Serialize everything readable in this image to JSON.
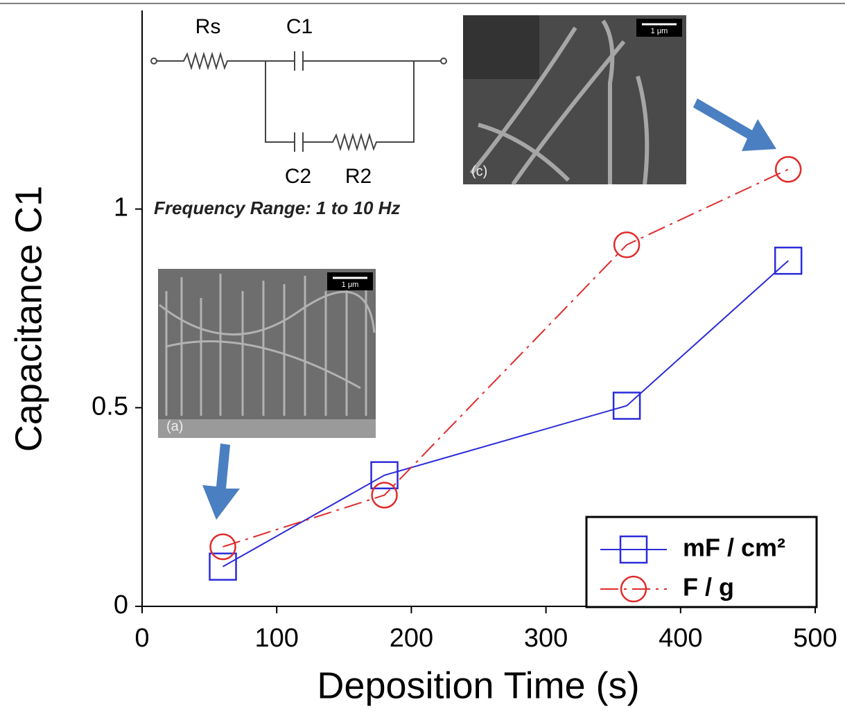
{
  "chart_data": {
    "type": "line",
    "x_label": "Deposition Time (s)",
    "y_label": "Capacitance C1",
    "x": [
      60,
      180,
      360,
      480
    ],
    "series": [
      {
        "name": "mF / cm²",
        "color": "#2b2bd9",
        "marker": "square",
        "linestyle": "solid",
        "values": [
          0.1,
          0.33,
          0.505,
          0.87
        ]
      },
      {
        "name": "F / g",
        "color": "#e02a2a",
        "marker": "circle",
        "linestyle": "dashdot",
        "values": [
          0.15,
          0.28,
          0.91,
          1.1
        ]
      }
    ],
    "xlim": [
      0,
      500
    ],
    "xticks": [
      0,
      100,
      200,
      300,
      400,
      500
    ],
    "ylim": [
      0,
      1.5
    ],
    "yticks": [
      0,
      0.5,
      1
    ],
    "legend": "lower right",
    "annotations": {
      "rs": "Rs",
      "c1": "C1",
      "c2": "C2",
      "r2": "R2",
      "note": "Frequency Range: 1 to 10 Hz",
      "inset_a": "(a)",
      "inset_a_scale": "1 μm",
      "inset_c": "(c)",
      "inset_c_scale": "1 μm"
    }
  }
}
